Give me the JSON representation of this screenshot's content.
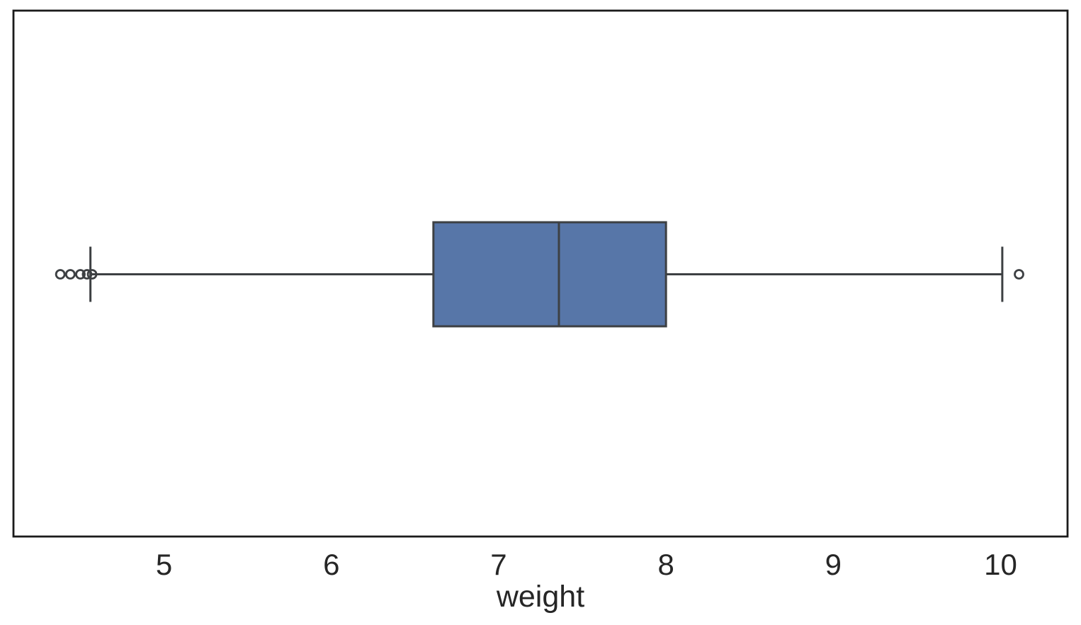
{
  "figure": {
    "background": "#ffffff",
    "frame_color": "#1b1b1b",
    "line_color": "#3d4043",
    "text_color": "#262626"
  },
  "chart_data": {
    "type": "boxplot",
    "orientation": "horizontal",
    "title": "",
    "xlabel": "weight",
    "ylabel": "",
    "x_ticks": [
      5,
      6,
      7,
      8,
      9,
      10
    ],
    "xlim": [
      4.1,
      10.4
    ],
    "grid": false,
    "legend": false,
    "box_fill": "#5776a8",
    "box_edge": "#3d4043",
    "series": [
      {
        "name": "weight",
        "q1": 6.61,
        "median": 7.36,
        "q3": 8.0,
        "whisker_low": 4.56,
        "whisker_high": 10.01,
        "outliers": [
          4.38,
          4.44,
          4.5,
          4.54,
          4.57,
          10.11
        ]
      }
    ]
  }
}
